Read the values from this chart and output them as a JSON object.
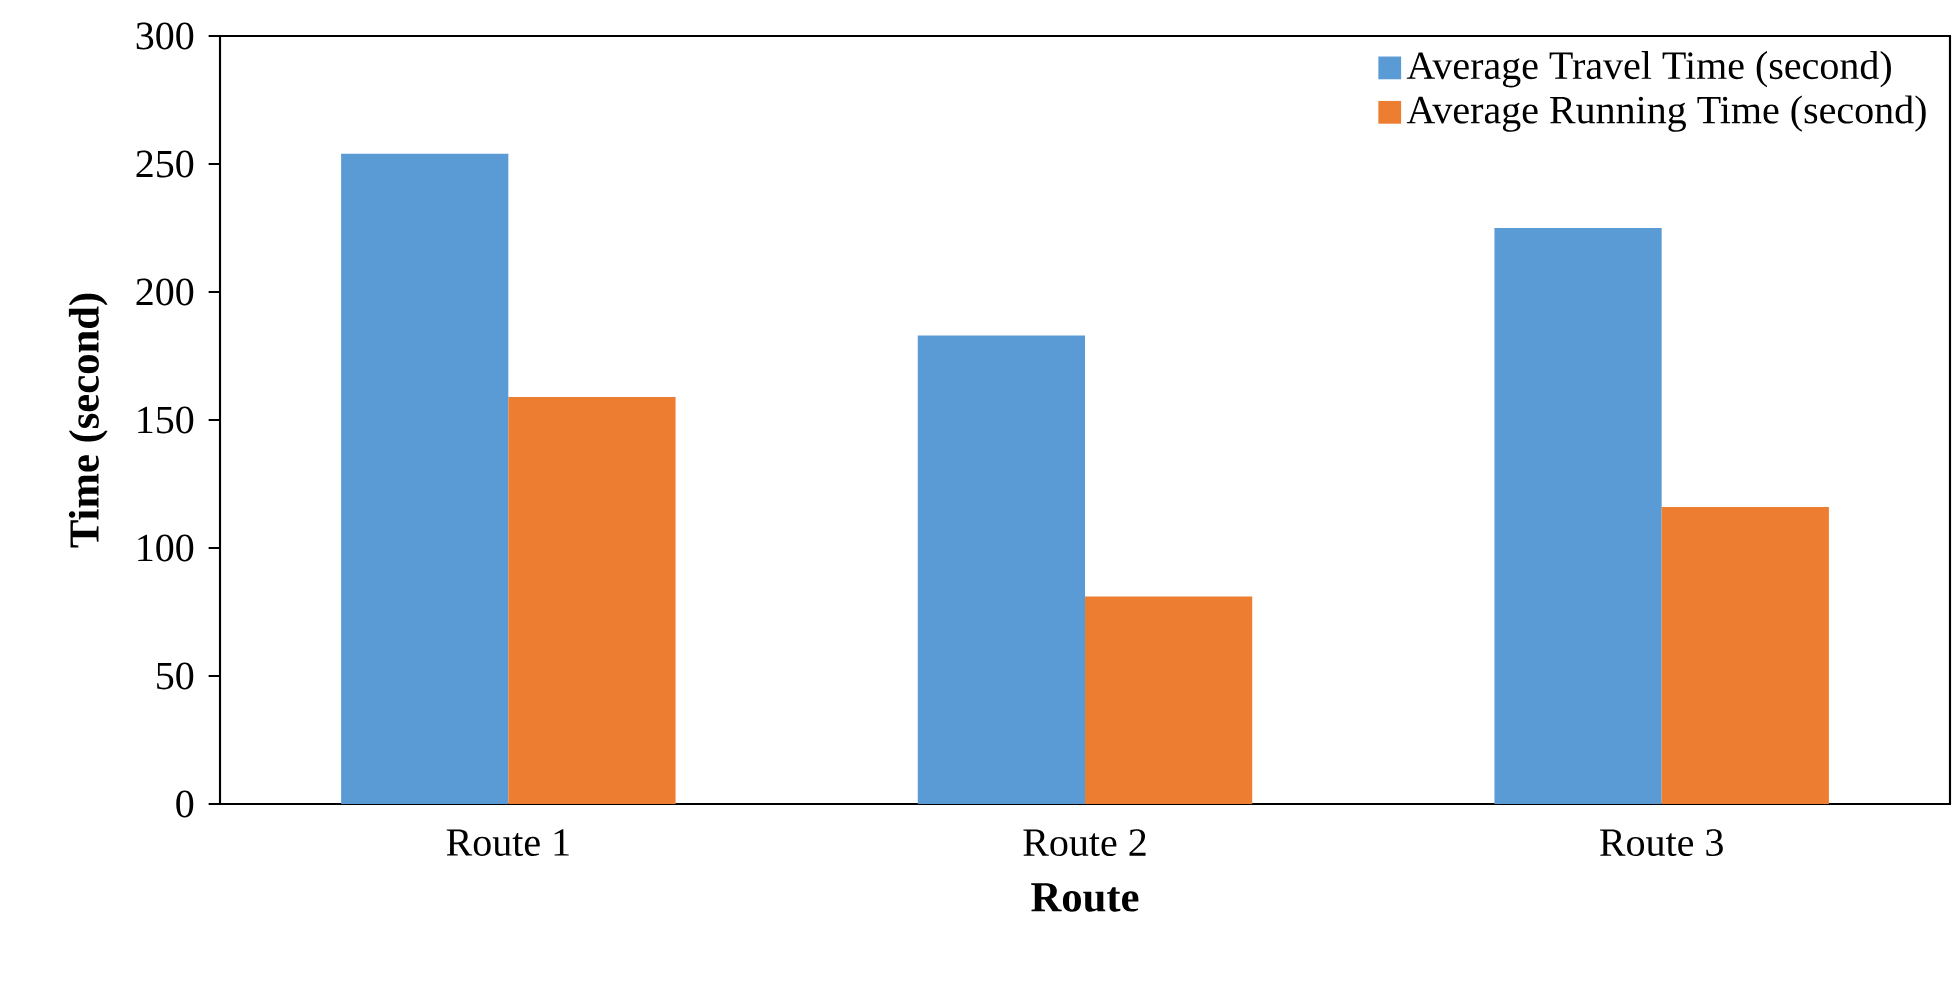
{
  "chart_data": {
    "type": "bar",
    "xlabel": "Route",
    "ylabel": "Time (second)",
    "categories": [
      "Route 1",
      "Route 2",
      "Route 3"
    ],
    "series": [
      {
        "name": "Average Travel Time (second)",
        "color": "#5b9bd5",
        "values": [
          254,
          183,
          225
        ]
      },
      {
        "name": "Average Running Time (second)",
        "color": "#ed7d31",
        "values": [
          159,
          81,
          116
        ]
      }
    ],
    "ylim": [
      0,
      300
    ],
    "yticks": [
      0,
      50,
      100,
      150,
      200,
      250,
      300
    ],
    "legend": "top right",
    "grid": false
  }
}
